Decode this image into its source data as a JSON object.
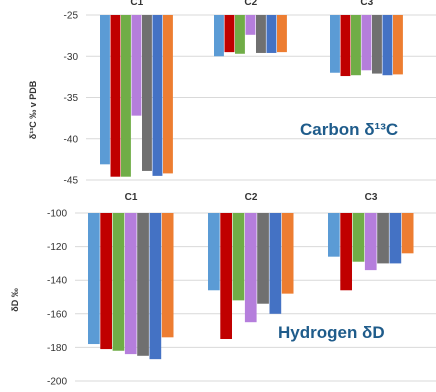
{
  "colors": [
    "#5b9bd5",
    "#c00000",
    "#70ad47",
    "#b57edc",
    "#707070",
    "#4472c4",
    "#ed7d31"
  ],
  "chart_data": [
    {
      "type": "bar",
      "categories": [
        "C1",
        "C2",
        "C3"
      ],
      "series": [
        {
          "values": [
            -43.1,
            -30.0,
            -32.0
          ]
        },
        {
          "values": [
            -44.6,
            -29.5,
            -32.4
          ]
        },
        {
          "values": [
            -44.6,
            -29.7,
            -32.3
          ]
        },
        {
          "values": [
            -37.2,
            -27.4,
            -31.7
          ]
        },
        {
          "values": [
            -43.9,
            -29.6,
            -32.1
          ]
        },
        {
          "values": [
            -44.5,
            -29.6,
            -32.3
          ]
        },
        {
          "values": [
            -44.2,
            -29.5,
            -32.2
          ]
        }
      ],
      "ylim": [
        -45,
        -25
      ],
      "yticks": [
        -25,
        -30,
        -35,
        -40,
        -45
      ],
      "xlabel": "",
      "ylabel": "δ¹³C ‰ v PDB",
      "title": "",
      "annotation": "Carbon δ¹³C",
      "grid": true
    },
    {
      "type": "bar",
      "categories": [
        "C1",
        "C2",
        "C3"
      ],
      "series": [
        {
          "values": [
            -178,
            -146,
            -126
          ]
        },
        {
          "values": [
            -181,
            -175,
            -146
          ]
        },
        {
          "values": [
            -182,
            -152,
            -129
          ]
        },
        {
          "values": [
            -184,
            -165,
            -134
          ]
        },
        {
          "values": [
            -185,
            -154,
            -130
          ]
        },
        {
          "values": [
            -187,
            -160,
            -130
          ]
        },
        {
          "values": [
            -174,
            -148,
            -124
          ]
        }
      ],
      "ylim": [
        -200,
        -100
      ],
      "yticks": [
        -100,
        -120,
        -140,
        -160,
        -180,
        -200
      ],
      "xlabel": "",
      "ylabel": "δD ‰",
      "title": "",
      "annotation": "Hydrogen δD",
      "grid": true
    }
  ]
}
